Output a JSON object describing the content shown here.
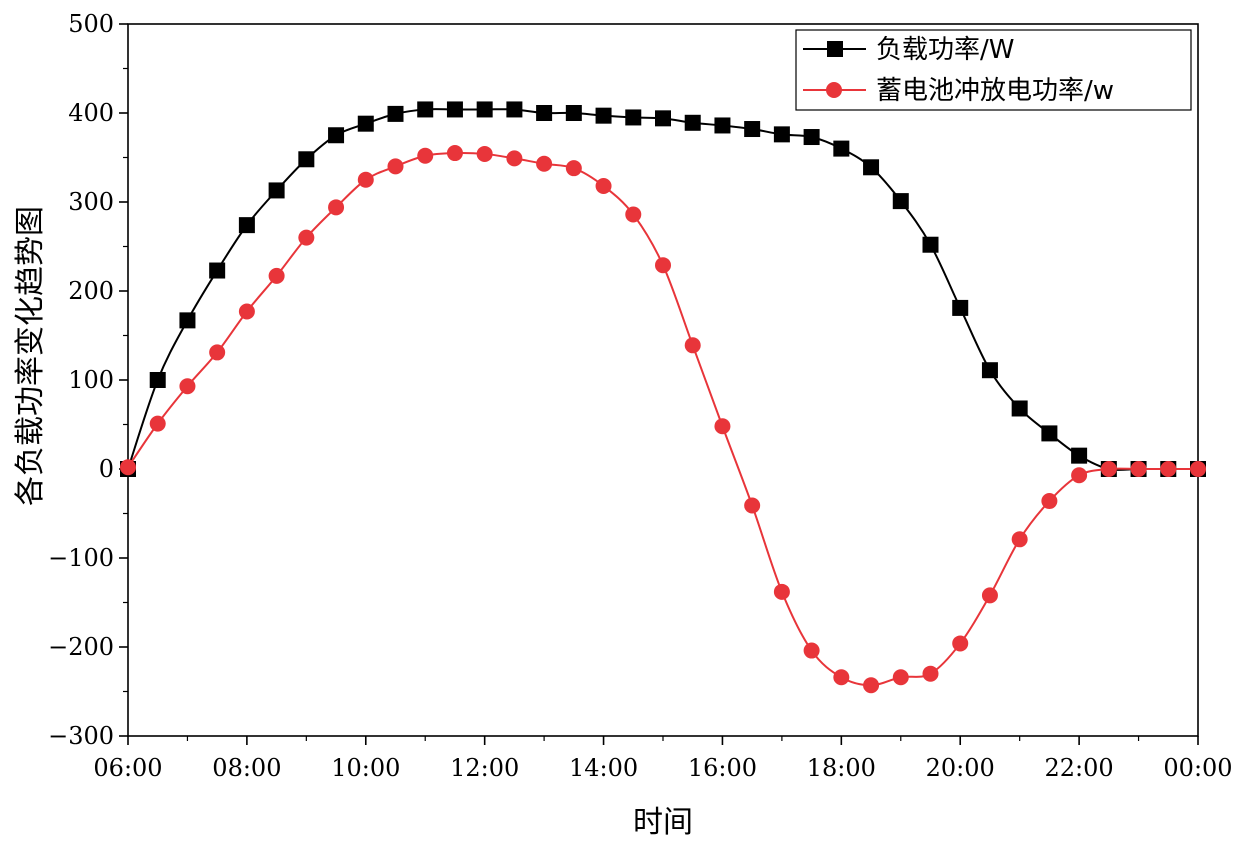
{
  "chart_data": {
    "type": "line",
    "title": "",
    "xlabel": "时间",
    "ylabel": "各负载功率变化趋势图",
    "xlim": [
      0,
      18
    ],
    "ylim": [
      -300,
      500
    ],
    "x_ticks": [
      {
        "value": 0,
        "label": "06:00"
      },
      {
        "value": 2,
        "label": "08:00"
      },
      {
        "value": 4,
        "label": "10:00"
      },
      {
        "value": 6,
        "label": "12:00"
      },
      {
        "value": 8,
        "label": "14:00"
      },
      {
        "value": 10,
        "label": "16:00"
      },
      {
        "value": 12,
        "label": "18:00"
      },
      {
        "value": 14,
        "label": "20:00"
      },
      {
        "value": 16,
        "label": "22:00"
      },
      {
        "value": 18,
        "label": "00:00"
      }
    ],
    "y_ticks": [
      {
        "value": 500,
        "label": "500"
      },
      {
        "value": 400,
        "label": "400"
      },
      {
        "value": 300,
        "label": "300"
      },
      {
        "value": 200,
        "label": "200"
      },
      {
        "value": 100,
        "label": "100"
      },
      {
        "value": 0,
        "label": "0"
      },
      {
        "value": -100,
        "label": "−100"
      },
      {
        "value": -200,
        "label": "−200"
      },
      {
        "value": -300,
        "label": "−300"
      }
    ],
    "grid": false,
    "legend_position": "top-right",
    "series": [
      {
        "name": "负载功率/W",
        "color": "#000000",
        "marker": "square",
        "x": [
          0,
          0.5,
          1,
          1.5,
          2,
          2.5,
          3,
          3.5,
          4,
          4.5,
          5,
          5.5,
          6,
          6.5,
          7,
          7.5,
          8,
          8.5,
          9,
          9.5,
          10,
          10.5,
          11,
          11.5,
          12,
          12.5,
          13,
          13.5,
          14,
          14.5,
          15,
          15.5,
          16,
          16.5,
          17,
          17.5,
          18
        ],
        "values": [
          0,
          100,
          167,
          223,
          274,
          313,
          348,
          375,
          388,
          399,
          404,
          404,
          404,
          404,
          400,
          400,
          397,
          395,
          394,
          389,
          386,
          382,
          376,
          373,
          360,
          339,
          301,
          252,
          181,
          111,
          68,
          40,
          15,
          0,
          0,
          0,
          0
        ]
      },
      {
        "name": "蓄电池冲放电功率/w",
        "color": "#e8353a",
        "marker": "circle",
        "x": [
          0,
          0.5,
          1,
          1.5,
          2,
          2.5,
          3,
          3.5,
          4,
          4.5,
          5,
          5.5,
          6,
          6.5,
          7,
          7.5,
          8,
          8.5,
          9,
          9.5,
          10,
          10.5,
          11,
          11.5,
          12,
          12.5,
          13,
          13.5,
          14,
          14.5,
          15,
          15.5,
          16,
          16.5,
          17,
          17.5,
          18
        ],
        "values": [
          2,
          51,
          93,
          131,
          177,
          217,
          260,
          294,
          325,
          340,
          352,
          355,
          354,
          349,
          343,
          338,
          318,
          286,
          229,
          139,
          48,
          -41,
          -138,
          -204,
          -234,
          -243,
          -234,
          -230,
          -196,
          -142,
          -79,
          -36,
          -7,
          0,
          0,
          0,
          0
        ]
      }
    ]
  }
}
